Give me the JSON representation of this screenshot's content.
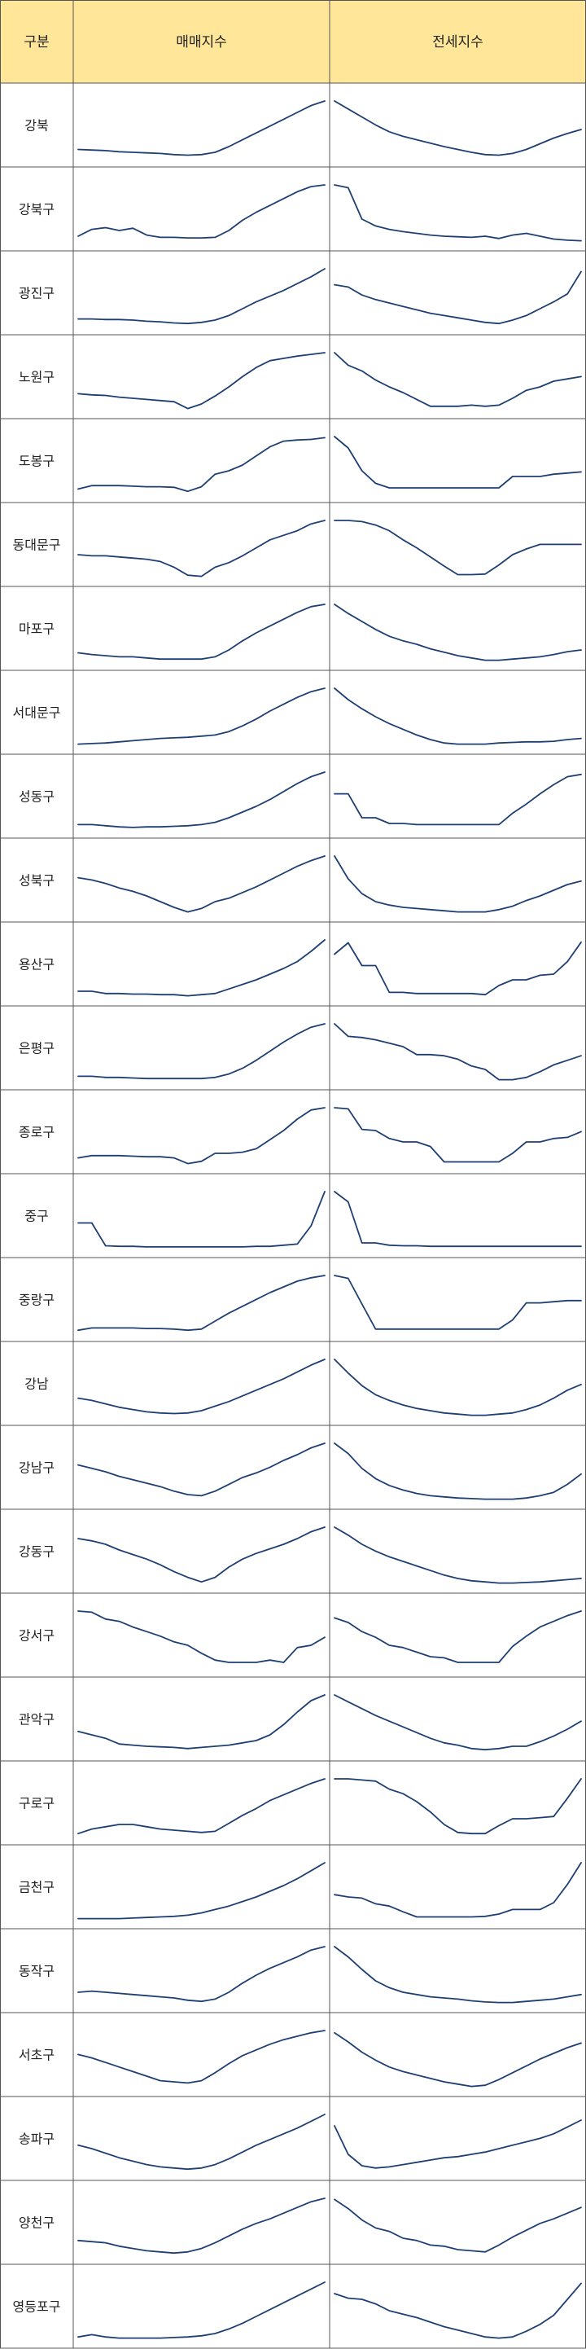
{
  "table": {
    "headers": [
      "구분",
      "매매지수",
      "전세지수"
    ],
    "header_bg": "#ffe699",
    "grid_color": "#555555",
    "line_color": "#1f3f73"
  },
  "chart_data": {
    "type": "line",
    "columns": [
      "매매지수",
      "전세지수"
    ],
    "rows": [
      {
        "label": "강북",
        "매매": [
          0.15,
          0.14,
          0.13,
          0.11,
          0.1,
          0.09,
          0.08,
          0.06,
          0.05,
          0.06,
          0.1,
          0.2,
          0.32,
          0.44,
          0.56,
          0.68,
          0.8,
          0.92,
          1.0
        ],
        "전세": [
          1.0,
          0.86,
          0.72,
          0.58,
          0.46,
          0.38,
          0.32,
          0.26,
          0.2,
          0.15,
          0.1,
          0.06,
          0.05,
          0.08,
          0.15,
          0.25,
          0.35,
          0.43,
          0.5
        ]
      },
      {
        "label": "강북구",
        "매매": [
          0.1,
          0.22,
          0.25,
          0.2,
          0.24,
          0.12,
          0.08,
          0.08,
          0.07,
          0.07,
          0.08,
          0.2,
          0.38,
          0.52,
          0.64,
          0.76,
          0.88,
          0.97,
          1.0
        ],
        "전세": [
          1.0,
          0.95,
          0.4,
          0.28,
          0.22,
          0.18,
          0.15,
          0.12,
          0.1,
          0.09,
          0.08,
          0.1,
          0.06,
          0.12,
          0.15,
          0.1,
          0.05,
          0.03,
          0.02
        ]
      },
      {
        "label": "광진구",
        "매매": [
          0.12,
          0.12,
          0.11,
          0.11,
          0.1,
          0.08,
          0.07,
          0.05,
          0.04,
          0.06,
          0.1,
          0.18,
          0.3,
          0.42,
          0.52,
          0.62,
          0.74,
          0.86,
          1.0
        ],
        "전세": [
          0.72,
          0.68,
          0.54,
          0.46,
          0.4,
          0.34,
          0.28,
          0.22,
          0.18,
          0.14,
          0.1,
          0.06,
          0.04,
          0.1,
          0.18,
          0.3,
          0.42,
          0.56,
          0.95
        ]
      },
      {
        "label": "노원구",
        "매매": [
          0.28,
          0.26,
          0.25,
          0.22,
          0.2,
          0.18,
          0.16,
          0.14,
          0.02,
          0.1,
          0.24,
          0.4,
          0.58,
          0.74,
          0.86,
          0.9,
          0.94,
          0.97,
          1.0
        ],
        "전세": [
          1.0,
          0.78,
          0.68,
          0.52,
          0.4,
          0.3,
          0.18,
          0.06,
          0.06,
          0.06,
          0.08,
          0.06,
          0.08,
          0.2,
          0.34,
          0.4,
          0.5,
          0.54,
          0.58
        ]
      },
      {
        "label": "도봉구",
        "매매": [
          0.08,
          0.14,
          0.14,
          0.14,
          0.13,
          0.12,
          0.12,
          0.11,
          0.04,
          0.12,
          0.34,
          0.4,
          0.5,
          0.66,
          0.82,
          0.92,
          0.94,
          0.95,
          0.98
        ],
        "전세": [
          1.0,
          0.8,
          0.4,
          0.18,
          0.1,
          0.1,
          0.1,
          0.1,
          0.1,
          0.1,
          0.1,
          0.1,
          0.1,
          0.3,
          0.3,
          0.3,
          0.34,
          0.36,
          0.38
        ]
      },
      {
        "label": "동대문구",
        "매매": [
          0.4,
          0.38,
          0.38,
          0.36,
          0.34,
          0.32,
          0.28,
          0.18,
          0.04,
          0.02,
          0.18,
          0.26,
          0.38,
          0.52,
          0.66,
          0.74,
          0.82,
          0.94,
          1.0
        ],
        "전세": [
          1.0,
          1.0,
          0.98,
          0.92,
          0.82,
          0.66,
          0.52,
          0.36,
          0.2,
          0.05,
          0.05,
          0.06,
          0.22,
          0.4,
          0.5,
          0.58,
          0.58,
          0.58,
          0.58
        ]
      },
      {
        "label": "마포구",
        "매매": [
          0.15,
          0.12,
          0.1,
          0.08,
          0.08,
          0.06,
          0.04,
          0.04,
          0.04,
          0.04,
          0.08,
          0.2,
          0.36,
          0.5,
          0.62,
          0.74,
          0.86,
          0.96,
          1.0
        ],
        "전세": [
          1.0,
          0.84,
          0.7,
          0.56,
          0.44,
          0.36,
          0.3,
          0.22,
          0.16,
          0.1,
          0.06,
          0.02,
          0.02,
          0.04,
          0.06,
          0.08,
          0.12,
          0.17,
          0.2
        ]
      },
      {
        "label": "서대문구",
        "매매": [
          0.02,
          0.03,
          0.04,
          0.06,
          0.08,
          0.1,
          0.12,
          0.13,
          0.14,
          0.16,
          0.18,
          0.24,
          0.34,
          0.46,
          0.6,
          0.72,
          0.84,
          0.94,
          1.0
        ],
        "전세": [
          1.0,
          0.8,
          0.64,
          0.5,
          0.38,
          0.28,
          0.18,
          0.1,
          0.04,
          0.02,
          0.02,
          0.02,
          0.04,
          0.05,
          0.06,
          0.06,
          0.07,
          0.1,
          0.12
        ]
      },
      {
        "label": "성동구",
        "매매": [
          0.08,
          0.08,
          0.06,
          0.04,
          0.03,
          0.04,
          0.04,
          0.05,
          0.06,
          0.08,
          0.12,
          0.2,
          0.3,
          0.4,
          0.52,
          0.66,
          0.8,
          0.92,
          1.0
        ],
        "전세": [
          0.62,
          0.62,
          0.2,
          0.2,
          0.1,
          0.1,
          0.08,
          0.08,
          0.08,
          0.08,
          0.08,
          0.08,
          0.08,
          0.28,
          0.44,
          0.62,
          0.78,
          0.92,
          0.96
        ]
      },
      {
        "label": "성북구",
        "매매": [
          0.62,
          0.58,
          0.52,
          0.44,
          0.38,
          0.3,
          0.2,
          0.1,
          0.02,
          0.08,
          0.2,
          0.26,
          0.36,
          0.46,
          0.58,
          0.7,
          0.82,
          0.92,
          1.0
        ],
        "전세": [
          1.0,
          0.6,
          0.34,
          0.2,
          0.14,
          0.1,
          0.08,
          0.06,
          0.04,
          0.02,
          0.02,
          0.02,
          0.06,
          0.12,
          0.22,
          0.3,
          0.4,
          0.5,
          0.56
        ]
      },
      {
        "label": "용산구",
        "매매": [
          0.1,
          0.1,
          0.06,
          0.06,
          0.05,
          0.05,
          0.04,
          0.04,
          0.02,
          0.04,
          0.06,
          0.14,
          0.22,
          0.3,
          0.4,
          0.5,
          0.62,
          0.8,
          1.0
        ],
        "전세": [
          0.75,
          0.95,
          0.55,
          0.55,
          0.08,
          0.08,
          0.06,
          0.06,
          0.06,
          0.06,
          0.06,
          0.04,
          0.2,
          0.3,
          0.3,
          0.38,
          0.4,
          0.62,
          0.96
        ]
      },
      {
        "label": "은평구",
        "매매": [
          0.08,
          0.08,
          0.06,
          0.06,
          0.05,
          0.04,
          0.04,
          0.04,
          0.04,
          0.04,
          0.06,
          0.12,
          0.22,
          0.36,
          0.52,
          0.68,
          0.82,
          0.94,
          1.0
        ],
        "전세": [
          1.0,
          0.78,
          0.76,
          0.72,
          0.66,
          0.6,
          0.46,
          0.46,
          0.44,
          0.38,
          0.26,
          0.2,
          0.02,
          0.02,
          0.06,
          0.16,
          0.28,
          0.36,
          0.44
        ]
      },
      {
        "label": "종로구",
        "매매": [
          0.12,
          0.16,
          0.16,
          0.16,
          0.15,
          0.14,
          0.14,
          0.12,
          0.02,
          0.06,
          0.2,
          0.2,
          0.22,
          0.28,
          0.44,
          0.6,
          0.8,
          0.96,
          1.0
        ],
        "전세": [
          1.0,
          0.98,
          0.62,
          0.6,
          0.46,
          0.4,
          0.4,
          0.32,
          0.05,
          0.05,
          0.05,
          0.05,
          0.05,
          0.2,
          0.4,
          0.4,
          0.46,
          0.48,
          0.58
        ]
      },
      {
        "label": "중구",
        "매매": [
          0.45,
          0.45,
          0.05,
          0.04,
          0.04,
          0.03,
          0.03,
          0.03,
          0.03,
          0.03,
          0.03,
          0.03,
          0.03,
          0.04,
          0.04,
          0.06,
          0.08,
          0.4,
          1.0
        ],
        "전세": [
          1.0,
          0.82,
          0.1,
          0.1,
          0.06,
          0.05,
          0.05,
          0.04,
          0.04,
          0.04,
          0.04,
          0.04,
          0.04,
          0.04,
          0.04,
          0.04,
          0.04,
          0.04,
          0.04
        ]
      },
      {
        "label": "중랑구",
        "매매": [
          0.04,
          0.08,
          0.08,
          0.08,
          0.08,
          0.07,
          0.07,
          0.06,
          0.04,
          0.06,
          0.2,
          0.34,
          0.46,
          0.58,
          0.7,
          0.8,
          0.9,
          0.96,
          1.0
        ],
        "전세": [
          1.0,
          0.95,
          0.5,
          0.06,
          0.06,
          0.06,
          0.06,
          0.06,
          0.06,
          0.06,
          0.06,
          0.06,
          0.06,
          0.22,
          0.52,
          0.52,
          0.54,
          0.56,
          0.56
        ]
      },
      {
        "label": "강남",
        "매매": [
          0.32,
          0.28,
          0.22,
          0.16,
          0.12,
          0.08,
          0.06,
          0.05,
          0.06,
          0.1,
          0.18,
          0.26,
          0.36,
          0.46,
          0.56,
          0.66,
          0.78,
          0.9,
          1.0
        ],
        "전세": [
          1.0,
          0.76,
          0.54,
          0.38,
          0.28,
          0.2,
          0.14,
          0.1,
          0.06,
          0.04,
          0.02,
          0.02,
          0.04,
          0.06,
          0.12,
          0.2,
          0.32,
          0.46,
          0.56
        ]
      },
      {
        "label": "강남구",
        "매매": [
          0.62,
          0.56,
          0.5,
          0.42,
          0.36,
          0.3,
          0.24,
          0.16,
          0.1,
          0.08,
          0.16,
          0.28,
          0.4,
          0.48,
          0.58,
          0.7,
          0.8,
          0.92,
          1.0
        ],
        "전세": [
          1.0,
          0.82,
          0.56,
          0.38,
          0.26,
          0.18,
          0.12,
          0.08,
          0.06,
          0.04,
          0.03,
          0.02,
          0.02,
          0.02,
          0.04,
          0.08,
          0.14,
          0.28,
          0.46
        ]
      },
      {
        "label": "강동구",
        "매매": [
          0.8,
          0.76,
          0.7,
          0.6,
          0.52,
          0.44,
          0.34,
          0.22,
          0.12,
          0.04,
          0.12,
          0.3,
          0.44,
          0.54,
          0.62,
          0.7,
          0.8,
          0.92,
          1.0
        ],
        "전세": [
          1.0,
          0.86,
          0.7,
          0.58,
          0.48,
          0.4,
          0.32,
          0.24,
          0.16,
          0.1,
          0.06,
          0.04,
          0.02,
          0.02,
          0.03,
          0.04,
          0.06,
          0.08,
          0.1
        ]
      },
      {
        "label": "강서구",
        "매매": [
          1.0,
          0.98,
          0.86,
          0.82,
          0.72,
          0.64,
          0.56,
          0.46,
          0.4,
          0.26,
          0.14,
          0.1,
          0.1,
          0.1,
          0.14,
          0.1,
          0.36,
          0.4,
          0.54
        ],
        "전세": [
          0.88,
          0.8,
          0.64,
          0.54,
          0.4,
          0.36,
          0.28,
          0.2,
          0.18,
          0.1,
          0.1,
          0.1,
          0.1,
          0.38,
          0.56,
          0.72,
          0.82,
          0.92,
          1.0
        ]
      },
      {
        "label": "관악구",
        "매매": [
          0.36,
          0.3,
          0.24,
          0.14,
          0.12,
          0.1,
          0.09,
          0.08,
          0.06,
          0.08,
          0.1,
          0.12,
          0.16,
          0.2,
          0.3,
          0.48,
          0.7,
          0.9,
          1.0
        ],
        "전세": [
          1.0,
          0.88,
          0.76,
          0.64,
          0.54,
          0.44,
          0.34,
          0.24,
          0.16,
          0.12,
          0.06,
          0.04,
          0.06,
          0.1,
          0.1,
          0.18,
          0.28,
          0.4,
          0.54
        ]
      },
      {
        "label": "구로구",
        "매매": [
          0.04,
          0.12,
          0.16,
          0.2,
          0.2,
          0.16,
          0.12,
          0.1,
          0.08,
          0.06,
          0.08,
          0.22,
          0.36,
          0.48,
          0.62,
          0.72,
          0.82,
          0.92,
          1.0
        ],
        "전세": [
          1.0,
          1.0,
          0.98,
          0.96,
          0.82,
          0.74,
          0.6,
          0.42,
          0.2,
          0.06,
          0.04,
          0.04,
          0.18,
          0.3,
          0.3,
          0.32,
          0.34,
          0.66,
          1.0
        ]
      },
      {
        "label": "금천구",
        "매매": [
          0.02,
          0.02,
          0.02,
          0.02,
          0.03,
          0.04,
          0.05,
          0.06,
          0.08,
          0.12,
          0.18,
          0.24,
          0.32,
          0.4,
          0.5,
          0.6,
          0.72,
          0.86,
          1.0
        ],
        "전세": [
          0.44,
          0.4,
          0.38,
          0.28,
          0.24,
          0.14,
          0.05,
          0.05,
          0.05,
          0.05,
          0.05,
          0.06,
          0.1,
          0.18,
          0.18,
          0.18,
          0.3,
          0.62,
          1.0
        ]
      },
      {
        "label": "동작구",
        "매매": [
          0.2,
          0.22,
          0.2,
          0.18,
          0.16,
          0.14,
          0.12,
          0.1,
          0.06,
          0.04,
          0.08,
          0.2,
          0.36,
          0.5,
          0.62,
          0.72,
          0.82,
          0.94,
          1.0
        ],
        "전세": [
          1.0,
          0.82,
          0.6,
          0.4,
          0.28,
          0.2,
          0.16,
          0.12,
          0.1,
          0.08,
          0.05,
          0.03,
          0.02,
          0.02,
          0.04,
          0.06,
          0.08,
          0.12,
          0.16
        ]
      },
      {
        "label": "서초구",
        "매매": [
          0.58,
          0.52,
          0.44,
          0.36,
          0.28,
          0.2,
          0.12,
          0.1,
          0.08,
          0.12,
          0.26,
          0.42,
          0.56,
          0.66,
          0.76,
          0.84,
          0.9,
          0.96,
          1.0
        ],
        "전세": [
          0.96,
          0.8,
          0.62,
          0.48,
          0.36,
          0.28,
          0.22,
          0.16,
          0.1,
          0.06,
          0.02,
          0.04,
          0.14,
          0.26,
          0.38,
          0.5,
          0.6,
          0.7,
          0.78
        ]
      },
      {
        "label": "송파구",
        "매매": [
          0.46,
          0.4,
          0.32,
          0.24,
          0.18,
          0.12,
          0.08,
          0.06,
          0.04,
          0.06,
          0.12,
          0.22,
          0.34,
          0.46,
          0.56,
          0.66,
          0.76,
          0.88,
          1.0
        ],
        "전세": [
          0.8,
          0.3,
          0.1,
          0.06,
          0.08,
          0.12,
          0.16,
          0.2,
          0.24,
          0.26,
          0.3,
          0.34,
          0.4,
          0.46,
          0.52,
          0.58,
          0.66,
          0.78,
          0.9
        ]
      },
      {
        "label": "양천구",
        "매매": [
          0.26,
          0.24,
          0.22,
          0.16,
          0.12,
          0.08,
          0.06,
          0.04,
          0.06,
          0.12,
          0.22,
          0.34,
          0.46,
          0.56,
          0.64,
          0.74,
          0.84,
          0.94,
          1.0
        ],
        "전세": [
          0.98,
          0.82,
          0.62,
          0.48,
          0.42,
          0.3,
          0.26,
          0.18,
          0.16,
          0.1,
          0.08,
          0.06,
          0.18,
          0.32,
          0.44,
          0.56,
          0.64,
          0.74,
          0.84
        ]
      },
      {
        "label": "영등포구",
        "매매": [
          0.04,
          0.08,
          0.04,
          0.02,
          0.02,
          0.02,
          0.02,
          0.03,
          0.04,
          0.06,
          0.1,
          0.18,
          0.28,
          0.4,
          0.52,
          0.64,
          0.76,
          0.88,
          1.0
        ],
        "전세": [
          0.8,
          0.72,
          0.7,
          0.62,
          0.5,
          0.44,
          0.38,
          0.3,
          0.22,
          0.16,
          0.1,
          0.04,
          0.02,
          0.04,
          0.14,
          0.26,
          0.42,
          0.7,
          0.98
        ]
      }
    ]
  }
}
